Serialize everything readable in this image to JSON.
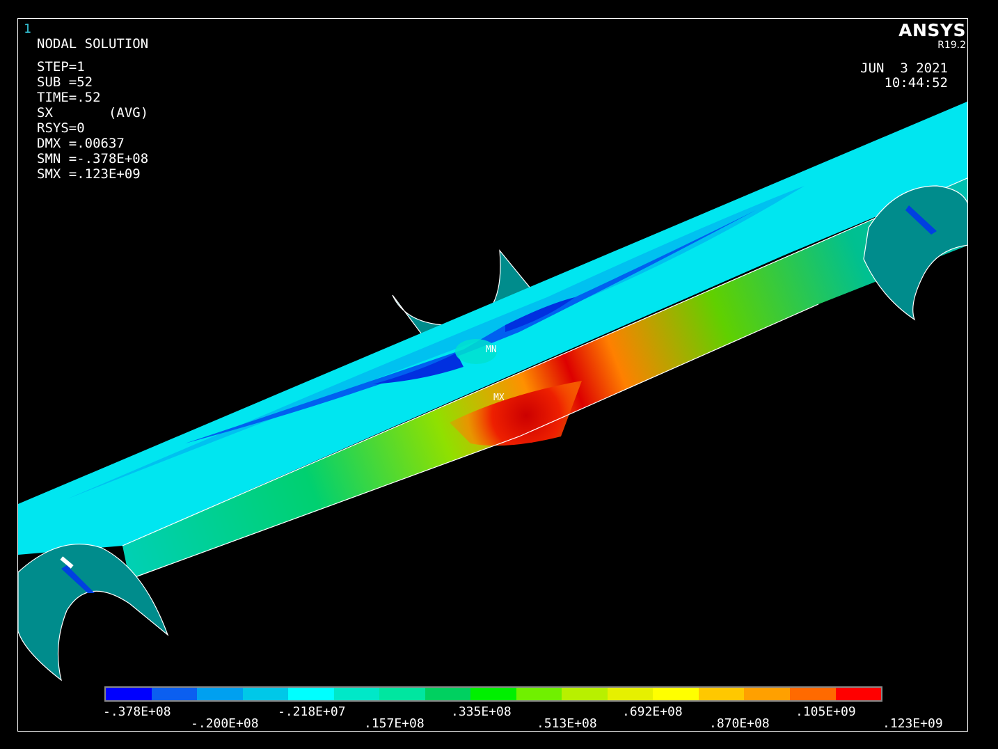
{
  "window_number": "1",
  "solution_title": "NODAL SOLUTION",
  "info_lines": [
    "STEP=1",
    "SUB =52",
    "TIME=.52",
    "SX       (AVG)",
    "RSYS=0",
    "DMX =.00637",
    "SMN =-.378E+08",
    "SMX =.123E+09"
  ],
  "brand": {
    "name": "ANSYS",
    "release": "R19.2"
  },
  "date": "JUN  3 2021",
  "time": "10:44:52",
  "markers": {
    "min": "MN",
    "max": "MX"
  },
  "legend": {
    "colors": [
      "#0000ff",
      "#0b5ff0",
      "#00a0f0",
      "#00c8e8",
      "#00ffff",
      "#00e8c8",
      "#00e6a0",
      "#00d060",
      "#00f000",
      "#70f000",
      "#b8f000",
      "#e6f000",
      "#ffff00",
      "#ffc800",
      "#ffa000",
      "#ff6a00",
      "#ff0000"
    ],
    "labels_top": [
      ".378E+08",
      "-.218E+07",
      ".335E+08",
      ".692E+08",
      ".105E+09"
    ],
    "labels_top_prefix": "-",
    "labels_bottom": [
      "-.200E+08",
      ".157E+08",
      ".513E+08",
      ".870E+08",
      ".123E+09"
    ]
  }
}
